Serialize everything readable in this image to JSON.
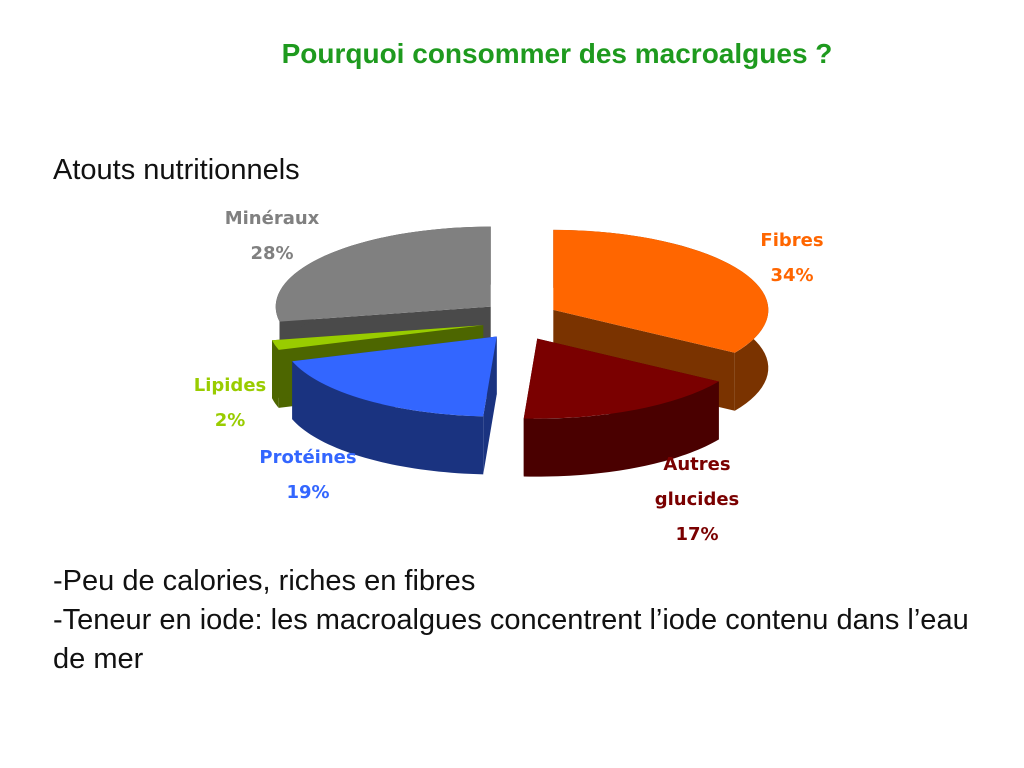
{
  "slide": {
    "title": "Pourquoi consommer des macroalgues ?",
    "subtitle": "Atouts nutritionnels"
  },
  "chart_data": {
    "type": "pie",
    "style": "3d-exploded",
    "slices": [
      {
        "label": "Fibres",
        "value": 34,
        "value_label": "34%",
        "color": "#ff6600",
        "side_color": "#7a3300"
      },
      {
        "label": "Autres glucides",
        "label_lines": [
          "Autres",
          "glucides"
        ],
        "value": 17,
        "value_label": "17%",
        "color": "#7a0000",
        "side_color": "#4a0000"
      },
      {
        "label": "Protéines",
        "value": 19,
        "value_label": "19%",
        "color": "#3366ff",
        "side_color": "#1a3380"
      },
      {
        "label": "Lipides",
        "value": 2,
        "value_label": "2%",
        "color": "#99cc00",
        "side_color": "#4d6600"
      },
      {
        "label": "Minéraux",
        "value": 28,
        "value_label": "28%",
        "color": "#808080",
        "side_color": "#4a4a4a"
      }
    ],
    "label_colors": {
      "Fibres": "#ff6600",
      "Autres glucides": "#7a0000",
      "Protéines": "#3366ff",
      "Lipides": "#99cc00",
      "Minéraux": "#808080"
    }
  },
  "bullets": [
    "-Peu de calories, riches en fibres",
    "-Teneur en iode: les macroalgues concentrent l’iode contenu dans l’eau de mer"
  ]
}
